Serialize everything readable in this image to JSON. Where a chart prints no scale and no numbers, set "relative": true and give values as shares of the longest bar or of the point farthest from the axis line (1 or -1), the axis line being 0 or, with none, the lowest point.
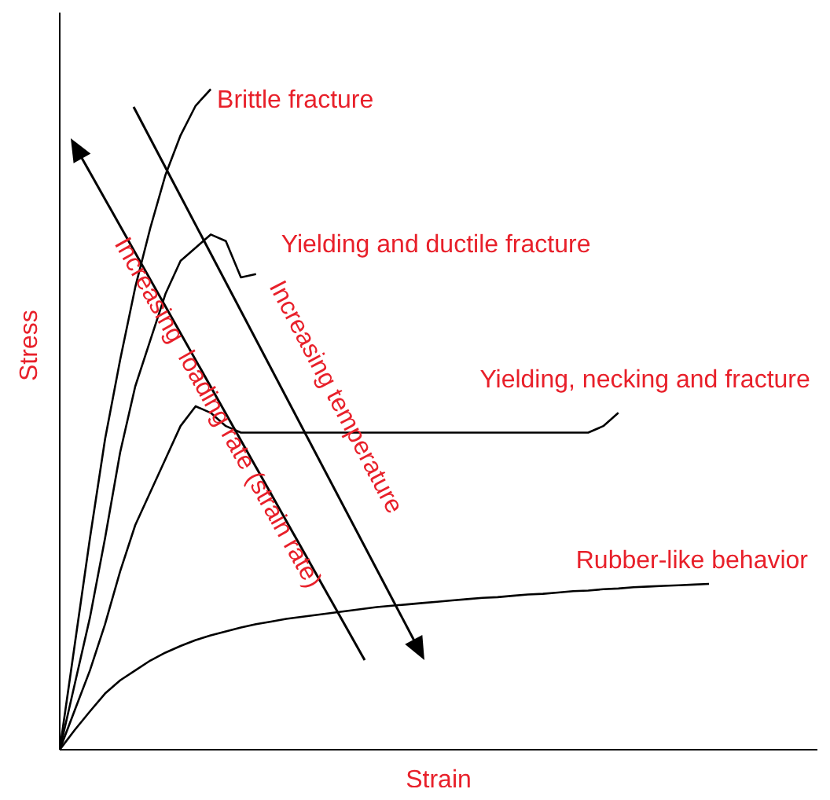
{
  "chart_data": {
    "type": "line",
    "relative": true,
    "xlabel": "Strain",
    "ylabel": "Stress",
    "annotations": [
      "Increasing  loading rate (strain rate)",
      "Increasing temperature"
    ],
    "categories": [
      null,
      null,
      null,
      null,
      null,
      null,
      null,
      null,
      null,
      null,
      null,
      null,
      null,
      null,
      null,
      null,
      null,
      null,
      null,
      null,
      null,
      null,
      null,
      null,
      null,
      null,
      null,
      null,
      null,
      null,
      null,
      null,
      null,
      null,
      null,
      null,
      null,
      null,
      null,
      null,
      null,
      null,
      null,
      null
    ],
    "series": [
      {
        "name": "Brittle fracture",
        "color": "#000000",
        "values": [
          0,
          0.16,
          0.32,
          0.47,
          0.59,
          0.7,
          0.79,
          0.87,
          0.93,
          0.975,
          1.0,
          null,
          null,
          null,
          null,
          null,
          null,
          null,
          null,
          null,
          null,
          null,
          null,
          null,
          null,
          null,
          null,
          null,
          null,
          null,
          null,
          null,
          null,
          null,
          null,
          null,
          null,
          null,
          null,
          null,
          null,
          null,
          null,
          null
        ]
      },
      {
        "name": "Yielding and ductile fracture",
        "color": "#000000",
        "values": [
          0,
          0.1,
          0.2,
          0.32,
          0.45,
          0.55,
          0.62,
          0.69,
          0.74,
          0.76,
          0.78,
          0.77,
          0.715,
          0.72,
          null,
          null,
          null,
          null,
          null,
          null,
          null,
          null,
          null,
          null,
          null,
          null,
          null,
          null,
          null,
          null,
          null,
          null,
          null,
          null,
          null,
          null,
          null,
          null,
          null,
          null,
          null,
          null,
          null,
          null
        ]
      },
      {
        "name": "Yielding, necking and fracture",
        "color": "#000000",
        "values": [
          0,
          0.06,
          0.12,
          0.19,
          0.27,
          0.34,
          0.39,
          0.44,
          0.49,
          0.52,
          0.51,
          0.49,
          0.48,
          0.48,
          0.48,
          0.48,
          0.48,
          0.48,
          0.48,
          0.48,
          0.48,
          0.48,
          0.48,
          0.48,
          0.48,
          0.48,
          0.48,
          0.48,
          0.48,
          0.48,
          0.48,
          0.48,
          0.48,
          0.48,
          0.48,
          0.48,
          0.49,
          0.51,
          null,
          null,
          null,
          null,
          null,
          null
        ]
      },
      {
        "name": "Rubber-like behavior",
        "color": "#000000",
        "values": [
          0,
          0.03,
          0.058,
          0.085,
          0.105,
          0.12,
          0.135,
          0.147,
          0.157,
          0.166,
          0.173,
          0.179,
          0.185,
          0.19,
          0.194,
          0.198,
          0.201,
          0.204,
          0.207,
          0.21,
          0.213,
          0.216,
          0.218,
          0.22,
          0.222,
          0.224,
          0.226,
          0.228,
          0.23,
          0.231,
          0.233,
          0.235,
          0.236,
          0.238,
          0.24,
          0.241,
          0.243,
          0.244,
          0.246,
          0.247,
          0.248,
          0.249,
          0.25,
          0.251
        ]
      }
    ]
  }
}
